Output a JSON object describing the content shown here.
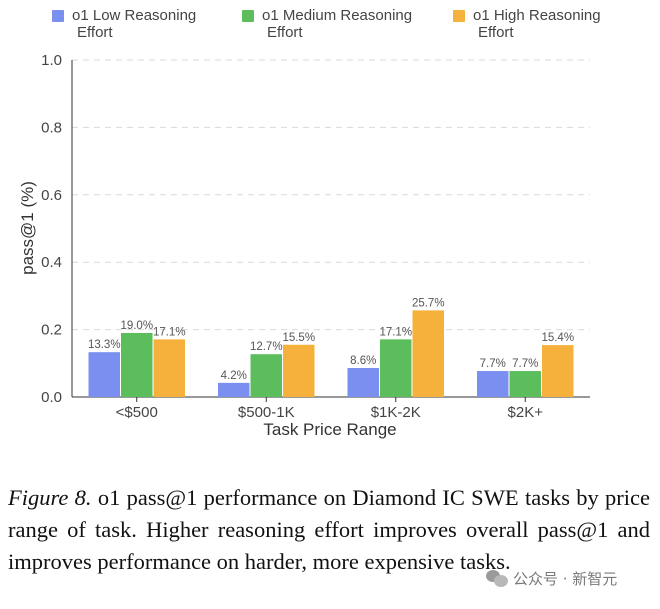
{
  "chart_data": {
    "type": "bar",
    "title": "",
    "xlabel": "Task Price Range",
    "ylabel": "pass@1 (%)",
    "ylim": [
      0,
      1.0
    ],
    "yticks": [
      "0.0",
      "0.2",
      "0.4",
      "0.6",
      "0.8",
      "1.0"
    ],
    "ytick_values": [
      0,
      0.2,
      0.4,
      0.6,
      0.8,
      1.0
    ],
    "grid": "horizontal dashed",
    "legend_position": "top",
    "categories": [
      "<$500",
      "$500-1K",
      "$1K-2K",
      "$2K+"
    ],
    "series": [
      {
        "name": "o1 Low Reasoning Effort",
        "legend_lines": [
          "o1 Low Reasoning",
          "Effort"
        ],
        "color": "#7b8ff0",
        "values": [
          0.133,
          0.042,
          0.086,
          0.077
        ],
        "labels": [
          "13.3%",
          "4.2%",
          "8.6%",
          "7.7%"
        ]
      },
      {
        "name": "o1 Medium Reasoning Effort",
        "legend_lines": [
          "o1 Medium Reasoning",
          "Effort"
        ],
        "color": "#5cbd5c",
        "values": [
          0.19,
          0.127,
          0.171,
          0.077
        ],
        "labels": [
          "19.0%",
          "12.7%",
          "17.1%",
          "7.7%"
        ]
      },
      {
        "name": "o1 High Reasoning Effort",
        "legend_lines": [
          "o1 High Reasoning",
          "Effort"
        ],
        "color": "#f6b03c",
        "values": [
          0.171,
          0.155,
          0.257,
          0.154
        ],
        "labels": [
          "17.1%",
          "15.5%",
          "25.7%",
          "15.4%"
        ]
      }
    ]
  },
  "caption": {
    "figure_label": "Figure 8.",
    "text": " o1 pass@1 performance on Diamond IC SWE tasks by price range of task.  Higher reasoning effort improves overall pass@1 and improves performance on harder, more expensive tasks."
  },
  "watermark": {
    "text": "公众号 · 新智元"
  }
}
